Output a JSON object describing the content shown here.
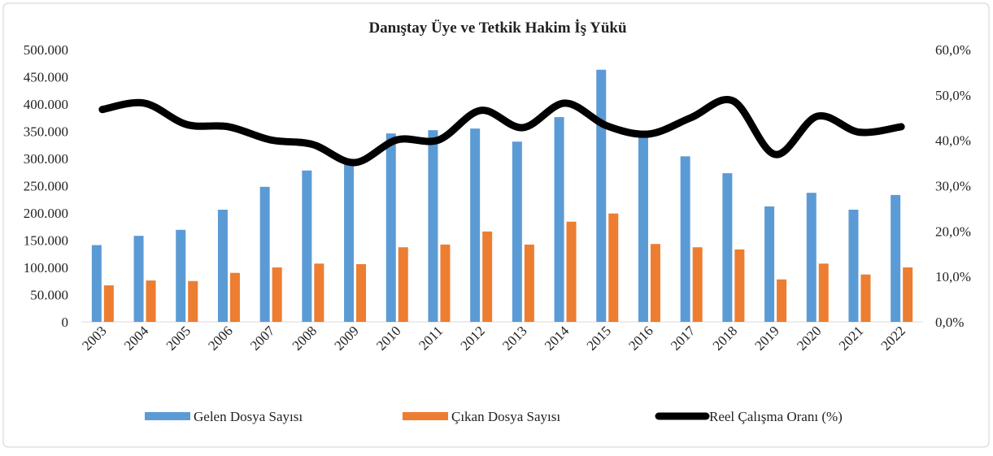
{
  "chart_data": {
    "type": "bar_line",
    "title": "Danıştay  Üye ve Tetkik Hakim  İş Yükü",
    "categories": [
      "2003",
      "2004",
      "2005",
      "2006",
      "2007",
      "2008",
      "2009",
      "2010",
      "2011",
      "2012",
      "2013",
      "2014",
      "2015",
      "2016",
      "2017",
      "2018",
      "2019",
      "2020",
      "2021",
      "2022"
    ],
    "series": [
      {
        "name": "Gelen Dosya Sayısı",
        "color": "#5b9bd5",
        "type": "bar",
        "values": [
          141000,
          158000,
          169000,
          206000,
          248000,
          278000,
          290000,
          346000,
          352000,
          355000,
          331000,
          376000,
          463000,
          345000,
          304000,
          273000,
          212000,
          237000,
          206000,
          233000
        ]
      },
      {
        "name": "Çıkan Dosya Sayısı",
        "color": "#ed7d31",
        "type": "bar",
        "values": [
          67000,
          76000,
          75000,
          90000,
          100000,
          107000,
          106000,
          137000,
          142000,
          166000,
          142000,
          184000,
          199000,
          143000,
          137000,
          133000,
          78000,
          107000,
          87000,
          100000
        ]
      },
      {
        "name": "Reel Çalışma Oranı (%)",
        "color": "#000000",
        "type": "line",
        "axis": "y2",
        "values": [
          46.8,
          48.2,
          43.5,
          43.0,
          40.1,
          39.1,
          35.1,
          40.1,
          40.1,
          46.6,
          42.8,
          48.2,
          43.2,
          41.4,
          45.0,
          48.7,
          36.9,
          45.3,
          41.8,
          43.0
        ]
      }
    ],
    "ylim": [
      0,
      500000
    ],
    "yticks": [
      0,
      {
        "value": 50000,
        "label": "50.000"
      },
      {
        "value": 100000,
        "label": "100.000"
      },
      {
        "value": 150000,
        "label": "150.000"
      },
      {
        "value": 200000,
        "label": "200.000"
      },
      {
        "value": 250000,
        "label": "250.000"
      },
      {
        "value": 300000,
        "label": "300.000"
      },
      {
        "value": 350000,
        "label": "350.000"
      },
      {
        "value": 400000,
        "label": "400.000"
      },
      {
        "value": 450000,
        "label": "450.000"
      },
      {
        "value": 500000,
        "label": "500.000"
      }
    ],
    "y2lim": [
      0,
      60
    ],
    "y2ticks": [
      {
        "value": 0,
        "label": "0,0%"
      },
      {
        "value": 10,
        "label": "10,0%"
      },
      {
        "value": 20,
        "label": "20,0%"
      },
      {
        "value": 30,
        "label": "30,0%"
      },
      {
        "value": 40,
        "label": "40,0%"
      },
      {
        "value": 50,
        "label": "50,0%"
      },
      {
        "value": 60,
        "label": "60,0%"
      }
    ],
    "legend": "bottom"
  }
}
